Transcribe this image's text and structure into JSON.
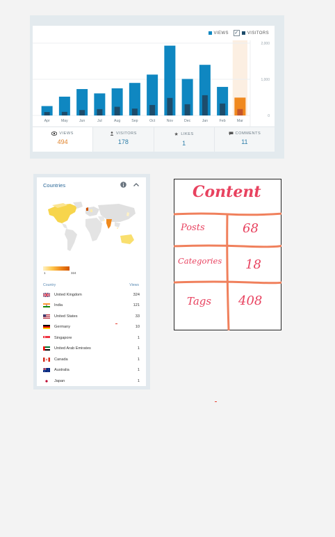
{
  "stats": {
    "legend": {
      "views": "VIEWS",
      "visitors": "VISITORS"
    },
    "tabs": [
      {
        "label": "VIEWS",
        "value": "494",
        "icon": "eye-icon"
      },
      {
        "label": "VISITORS",
        "value": "178",
        "icon": "person-icon"
      },
      {
        "label": "LIKES",
        "value": "1",
        "icon": "star-icon"
      },
      {
        "label": "COMMENTS",
        "value": "11",
        "icon": "comment-icon"
      }
    ]
  },
  "chart_data": {
    "type": "bar",
    "categories": [
      "Apr",
      "May",
      "Jun",
      "Jul",
      "Aug",
      "Sep",
      "Oct",
      "Nov",
      "Dec",
      "Jan",
      "Feb",
      "Mar"
    ],
    "series": [
      {
        "name": "VIEWS",
        "values": [
          260,
          520,
          730,
          610,
          750,
          900,
          1130,
          1930,
          1010,
          1400,
          790,
          494
        ]
      },
      {
        "name": "VISITORS",
        "values": [
          95,
          100,
          150,
          175,
          240,
          190,
          290,
          485,
          310,
          560,
          330,
          178
        ]
      }
    ],
    "ylim": [
      0,
      2000
    ],
    "yticks": [
      "2,000",
      "1,000",
      "0"
    ],
    "highlight_index": 11,
    "colors": {
      "views": "#0f87c1",
      "visitors": "#1d4c6b",
      "highlight": "#f0891f",
      "highlight_bg": "#fcefe2"
    }
  },
  "countries": {
    "title": "Countries",
    "scale_min": "1",
    "scale_max": "324",
    "col_country": "Country",
    "col_views": "Views",
    "rows": [
      {
        "name": "United Kingdom",
        "views": "324",
        "flag": "uk-flag-icon"
      },
      {
        "name": "India",
        "views": "121",
        "flag": "india-flag-icon"
      },
      {
        "name": "United States",
        "views": "33",
        "flag": "us-flag-icon"
      },
      {
        "name": "Germany",
        "views": "10",
        "flag": "germany-flag-icon"
      },
      {
        "name": "Singapore",
        "views": "1",
        "flag": "singapore-flag-icon"
      },
      {
        "name": "United Arab Emirates",
        "views": "1",
        "flag": "uae-flag-icon"
      },
      {
        "name": "Canada",
        "views": "1",
        "flag": "canada-flag-icon"
      },
      {
        "name": "Australia",
        "views": "1",
        "flag": "australia-flag-icon"
      },
      {
        "name": "Japan",
        "views": "1",
        "flag": "japan-flag-icon"
      }
    ]
  },
  "content": {
    "title": "Content",
    "rows": [
      {
        "label": "Posts",
        "value": "68"
      },
      {
        "label": "Categories",
        "value": "18"
      },
      {
        "label": "Tags",
        "value": "408"
      }
    ]
  }
}
